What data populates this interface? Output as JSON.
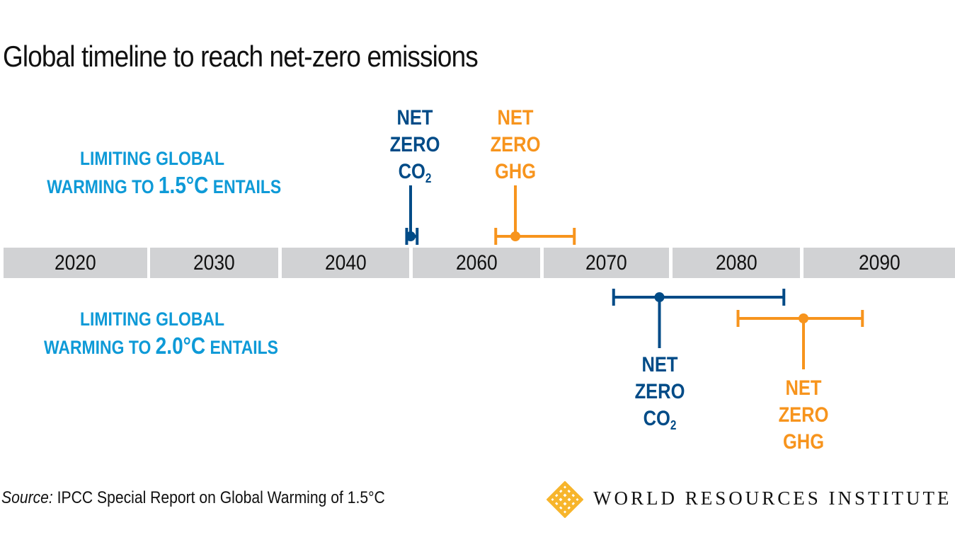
{
  "title": "Global timeline to reach net-zero emissions",
  "scenarios": [
    {
      "line1": "LIMITING GLOBAL",
      "line2_pre": "WARMING TO ",
      "temp": "1.5°C",
      "line2_post": " ENTAILS"
    },
    {
      "line1": "LIMITING GLOBAL",
      "line2_pre": "WARMING TO ",
      "temp": "2.0°C",
      "line2_post": " ENTAILS"
    }
  ],
  "timeline_labels": [
    "2020",
    "2030",
    "2040",
    "2060",
    "2070",
    "2080",
    "2090"
  ],
  "colors": {
    "co2": "#004b87",
    "ghg": "#f7941d",
    "scenario_text": "#0e9ad7",
    "timeline": "#d1d2d4",
    "logo": "#f7b52c"
  },
  "chart_data": {
    "type": "range-timeline",
    "markers": [
      {
        "scenario": "1.5°C",
        "gas": "CO2",
        "line1": "NET",
        "line2": "ZERO",
        "line3": "CO",
        "sub": "2",
        "year": 2050,
        "range": [
          2049.7,
          2050.5
        ]
      },
      {
        "scenario": "1.5°C",
        "gas": "GHG",
        "line1": "NET",
        "line2": "ZERO",
        "line3": "GHG",
        "sub": "",
        "year": 2058,
        "range": [
          2056.5,
          2062.5
        ]
      },
      {
        "scenario": "2.0°C",
        "gas": "CO2",
        "line1": "NET",
        "line2": "ZERO",
        "line3": "CO",
        "sub": "2",
        "year": 2069,
        "range": [
          2065.5,
          2078.5
        ]
      },
      {
        "scenario": "2.0°C",
        "gas": "GHG",
        "line1": "NET",
        "line2": "ZERO",
        "line3": "GHG",
        "sub": "",
        "year": 2080,
        "range": [
          2075,
          2084.5
        ]
      }
    ]
  },
  "source": {
    "label": "Source:",
    "text": " IPCC Special Report on Global Warming of 1.5°C"
  },
  "logo": {
    "text": "WORLD RESOURCES INSTITUTE"
  }
}
